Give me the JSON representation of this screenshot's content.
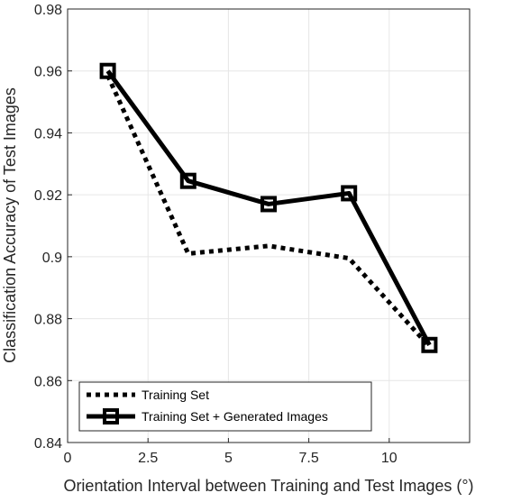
{
  "chart_data": {
    "type": "line",
    "xlabel": "Orientation Interval between Training and Test Images (°)",
    "ylabel": "Classification Accuracy of Test Images",
    "xlim": [
      0,
      12.5
    ],
    "ylim": [
      0.84,
      0.98
    ],
    "xticks": [
      0,
      2.5,
      5,
      7.5,
      10
    ],
    "xtick_labels": [
      "0",
      "2.5",
      "5",
      "7.5",
      "10"
    ],
    "yticks": [
      0.84,
      0.86,
      0.88,
      0.9,
      0.92,
      0.94,
      0.96,
      0.98
    ],
    "ytick_labels": [
      "0.84",
      "0.86",
      "0.88",
      "0.9",
      "0.92",
      "0.94",
      "0.96",
      "0.98"
    ],
    "grid": true,
    "legend_position": "bottom-left",
    "x": [
      1.25,
      3.75,
      6.25,
      8.75,
      11.25
    ],
    "series": [
      {
        "name": "Training Set",
        "values": [
          0.9585,
          0.901,
          0.9035,
          0.8995,
          0.871
        ],
        "style": "dotted",
        "marker": "none",
        "color": "#000000"
      },
      {
        "name": "Training Set + Generated Images",
        "values": [
          0.96,
          0.9245,
          0.917,
          0.9205,
          0.8715
        ],
        "style": "solid",
        "marker": "square",
        "color": "#000000"
      }
    ]
  }
}
